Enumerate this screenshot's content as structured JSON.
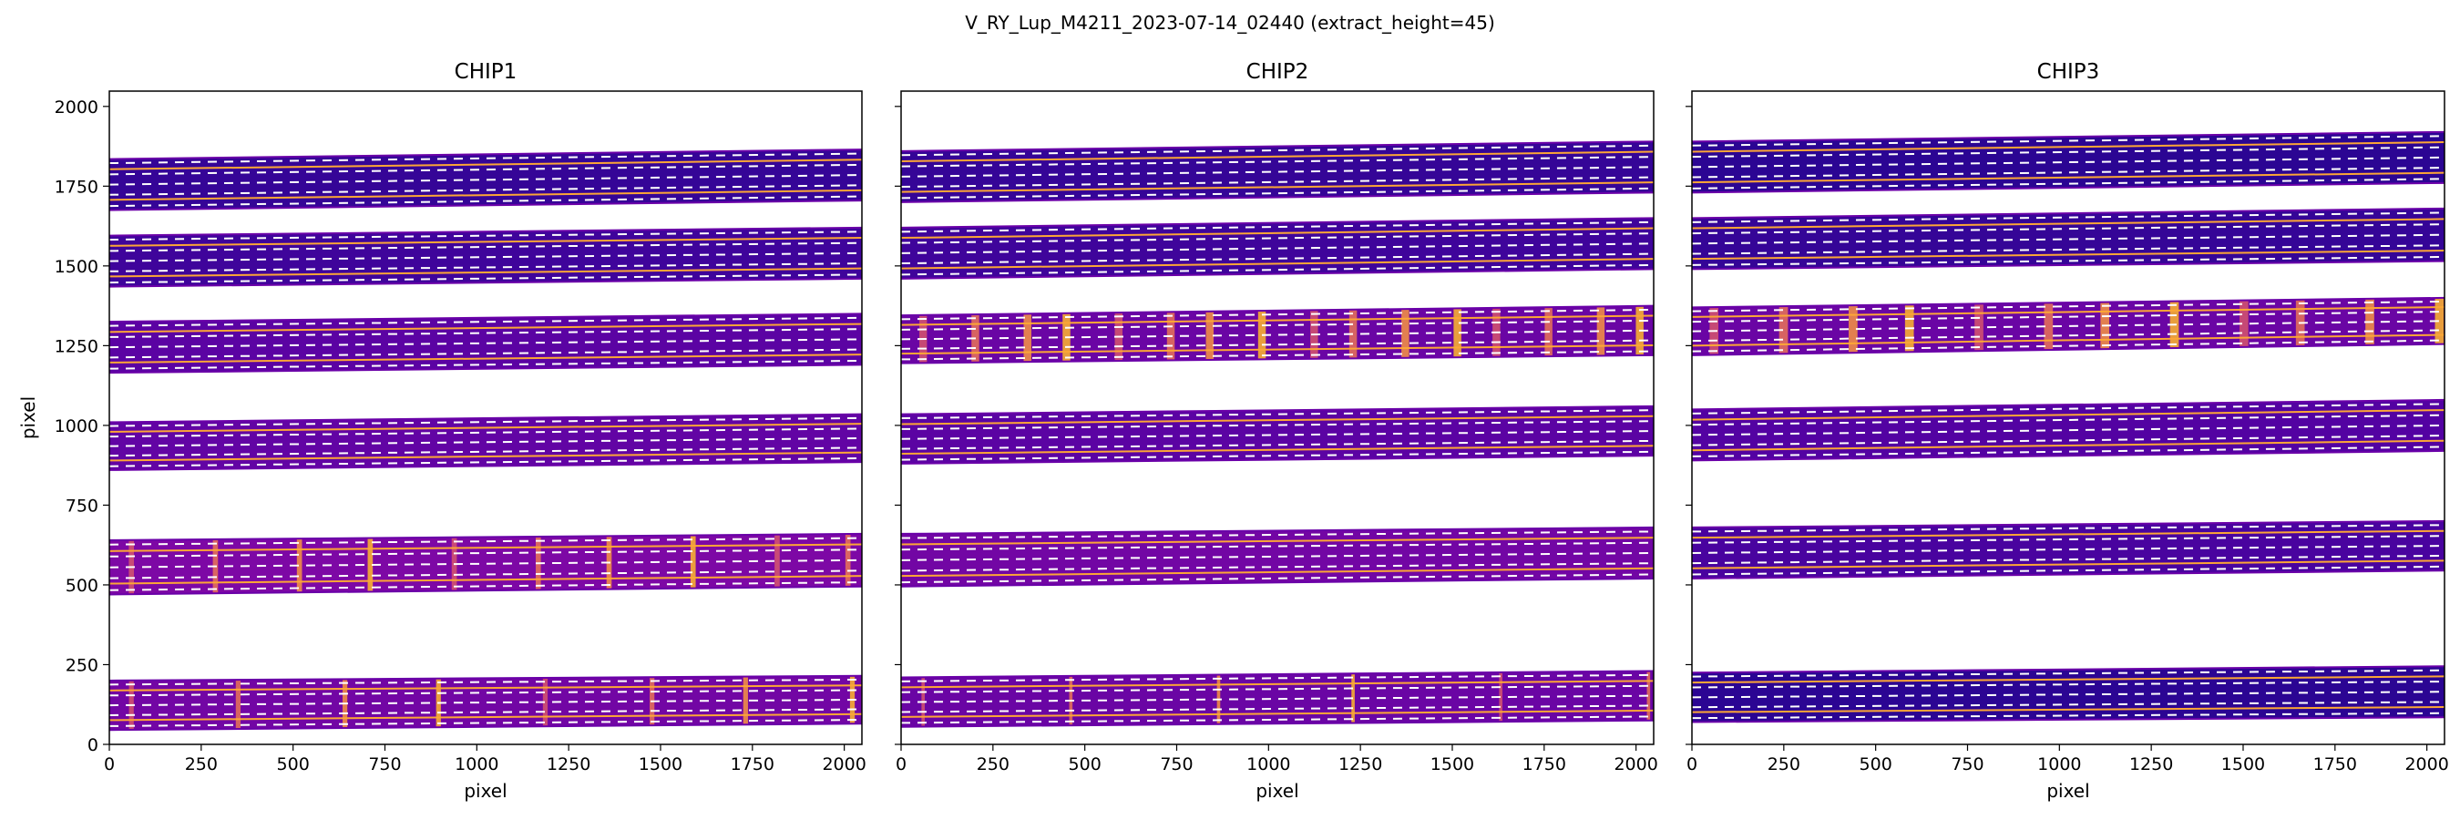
{
  "figure": {
    "suptitle": "V_RY_Lup_M4211_2023-07-14_02440  (extract_height=45)"
  },
  "chart_data": [
    {
      "type": "heatmap",
      "title": "CHIP1",
      "xlabel": "pixel",
      "ylabel": "pixel",
      "xlim": [
        0,
        2048
      ],
      "ylim": [
        0,
        2048
      ],
      "xticks": [
        0,
        250,
        500,
        750,
        1000,
        1250,
        1500,
        1750,
        2000
      ],
      "yticks": [
        0,
        250,
        500,
        750,
        1000,
        1250,
        1500,
        1750,
        2000
      ],
      "colormap": "plasma",
      "orders": [
        {
          "bottom": [
            45,
            65
          ],
          "top": [
            200,
            215
          ],
          "intensity": 0.22,
          "lines": [
            8,
            13
          ]
        },
        {
          "bottom": [
            470,
            495
          ],
          "top": [
            640,
            660
          ],
          "intensity": 0.25,
          "lines": [
            10,
            14
          ]
        },
        {
          "bottom": [
            860,
            885
          ],
          "top": [
            1010,
            1035
          ],
          "intensity": 0.18
        },
        {
          "bottom": [
            1165,
            1190
          ],
          "top": [
            1325,
            1350
          ],
          "intensity": 0.16
        },
        {
          "bottom": [
            1435,
            1460
          ],
          "top": [
            1595,
            1620
          ],
          "intensity": 0.1
        },
        {
          "bottom": [
            1675,
            1705
          ],
          "top": [
            1835,
            1865
          ],
          "intensity": 0.08
        }
      ]
    },
    {
      "type": "heatmap",
      "title": "CHIP2",
      "xlabel": "pixel",
      "ylabel": "",
      "xlim": [
        0,
        2048
      ],
      "ylim": [
        0,
        2048
      ],
      "xticks": [
        0,
        250,
        500,
        750,
        1000,
        1250,
        1500,
        1750,
        2000
      ],
      "yticks": [
        0,
        250,
        500,
        750,
        1000,
        1250,
        1500,
        1750,
        2000
      ],
      "colormap": "plasma",
      "orders": [
        {
          "bottom": [
            55,
            75
          ],
          "top": [
            210,
            230
          ],
          "intensity": 0.2,
          "lines": [
            6,
            9
          ]
        },
        {
          "bottom": [
            495,
            520
          ],
          "top": [
            660,
            680
          ],
          "intensity": 0.22
        },
        {
          "bottom": [
            880,
            905
          ],
          "top": [
            1035,
            1060
          ],
          "intensity": 0.16
        },
        {
          "bottom": [
            1195,
            1220
          ],
          "top": [
            1345,
            1375
          ],
          "intensity": 0.2,
          "lines": [
            16,
            21
          ]
        },
        {
          "bottom": [
            1460,
            1490
          ],
          "top": [
            1620,
            1650
          ],
          "intensity": 0.1
        },
        {
          "bottom": [
            1700,
            1730
          ],
          "top": [
            1860,
            1890
          ],
          "intensity": 0.08
        }
      ]
    },
    {
      "type": "heatmap",
      "title": "CHIP3",
      "xlabel": "pixel",
      "ylabel": "",
      "xlim": [
        0,
        2048
      ],
      "ylim": [
        0,
        2048
      ],
      "xticks": [
        0,
        250,
        500,
        750,
        1000,
        1250,
        1500,
        1750,
        2000
      ],
      "yticks": [
        0,
        250,
        500,
        750,
        1000,
        1250,
        1500,
        1750,
        2000
      ],
      "colormap": "plasma",
      "orders": [
        {
          "bottom": [
            70,
            85
          ],
          "top": [
            225,
            245
          ],
          "intensity": 0.06
        },
        {
          "bottom": [
            520,
            545
          ],
          "top": [
            680,
            700
          ],
          "intensity": 0.12
        },
        {
          "bottom": [
            890,
            920
          ],
          "top": [
            1050,
            1080
          ],
          "intensity": 0.14
        },
        {
          "bottom": [
            1220,
            1255
          ],
          "top": [
            1370,
            1400
          ],
          "intensity": 0.2,
          "lines": [
            12,
            24
          ]
        },
        {
          "bottom": [
            1490,
            1515
          ],
          "top": [
            1650,
            1680
          ],
          "intensity": 0.08
        },
        {
          "bottom": [
            1730,
            1760
          ],
          "top": [
            1890,
            1920
          ],
          "intensity": 0.06
        }
      ]
    }
  ]
}
